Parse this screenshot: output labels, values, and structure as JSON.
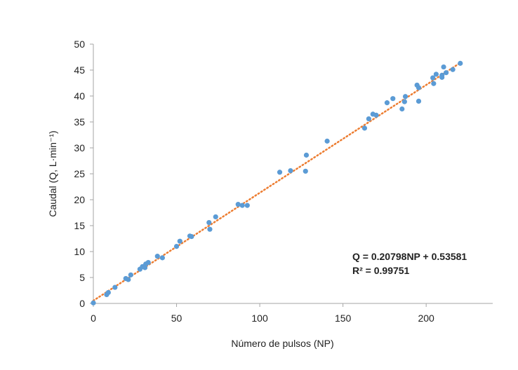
{
  "chart_data": {
    "type": "scatter",
    "xlabel": "Número de pulsos (NP)",
    "ylabel": "Caudal (Q, L·min⁻¹)",
    "xlim": [
      0,
      240
    ],
    "ylim": [
      0,
      50
    ],
    "xticks": [
      "0",
      "50",
      "100",
      "150",
      "200"
    ],
    "yticks": [
      "0",
      "5",
      "10",
      "15",
      "20",
      "25",
      "30",
      "35",
      "40",
      "45",
      "50"
    ],
    "grid": false,
    "colors": {
      "points": "#5b9bd5",
      "trendline": "#ed7d31",
      "axis": "#a6a6a6"
    },
    "trendline": {
      "type": "linear",
      "slope": 0.20798,
      "intercept": 0.53581,
      "x_range": [
        0,
        221
      ],
      "style": "dotted",
      "equation": "Q = 0.20798NP + 0.53581",
      "r2": "R² = 0.99751"
    },
    "series": [
      {
        "points": [
          [
            0,
            0.1
          ],
          [
            8,
            1.7
          ],
          [
            9,
            2.1
          ],
          [
            13,
            3.1
          ],
          [
            19.5,
            4.8
          ],
          [
            21,
            4.6
          ],
          [
            22.5,
            5.5
          ],
          [
            28,
            6.6
          ],
          [
            29.5,
            7.1
          ],
          [
            31,
            6.9
          ],
          [
            31.5,
            7.6
          ],
          [
            33,
            7.9
          ],
          [
            38.5,
            9.1
          ],
          [
            41.5,
            8.8
          ],
          [
            50,
            11.0
          ],
          [
            52,
            12.0
          ],
          [
            58,
            13.0
          ],
          [
            59,
            12.9
          ],
          [
            69.5,
            15.6
          ],
          [
            70,
            14.3
          ],
          [
            73.5,
            16.7
          ],
          [
            87,
            19.1
          ],
          [
            89.5,
            18.9
          ],
          [
            92.5,
            18.9
          ],
          [
            112,
            25.3
          ],
          [
            118.5,
            25.6
          ],
          [
            127.5,
            25.5
          ],
          [
            128,
            28.6
          ],
          [
            140.5,
            31.3
          ],
          [
            163,
            33.8
          ],
          [
            165.5,
            35.6
          ],
          [
            168,
            36.5
          ],
          [
            170,
            36.3
          ],
          [
            176.5,
            38.7
          ],
          [
            180,
            39.5
          ],
          [
            185.5,
            37.5
          ],
          [
            187,
            38.9
          ],
          [
            187.5,
            39.9
          ],
          [
            194.5,
            42.1
          ],
          [
            195.5,
            41.6
          ],
          [
            195.5,
            39.0
          ],
          [
            204,
            43.5
          ],
          [
            204.5,
            42.4
          ],
          [
            206,
            44.2
          ],
          [
            209.5,
            44.0
          ],
          [
            209.5,
            43.6
          ],
          [
            210.5,
            45.6
          ],
          [
            212,
            44.5
          ],
          [
            216,
            45.1
          ],
          [
            220.5,
            46.3
          ]
        ]
      }
    ]
  }
}
